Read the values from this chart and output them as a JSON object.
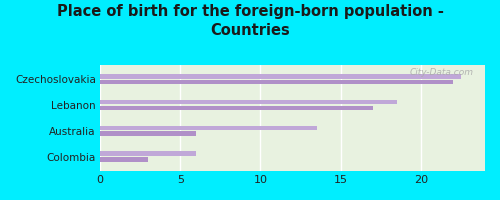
{
  "title": "Place of birth for the foreign-born population -\nCountries",
  "categories": [
    "Czechoslovakia",
    "Lebanon",
    "Australia",
    "Colombia"
  ],
  "bars_upper": [
    22.5,
    18.5,
    13.5,
    6.0
  ],
  "bars_lower": [
    22.0,
    17.0,
    6.0,
    3.0
  ],
  "bar_color_upper": "#c0a8d8",
  "bar_color_lower": "#b090c8",
  "bg_color": "#00EEFF",
  "plot_bg_color": "#e8f2e0",
  "xlim": [
    0,
    24
  ],
  "xticks": [
    0,
    5,
    10,
    15,
    20
  ],
  "watermark": "City-Data.com",
  "title_fontsize": 10.5,
  "label_fontsize": 7.5,
  "tick_fontsize": 8
}
